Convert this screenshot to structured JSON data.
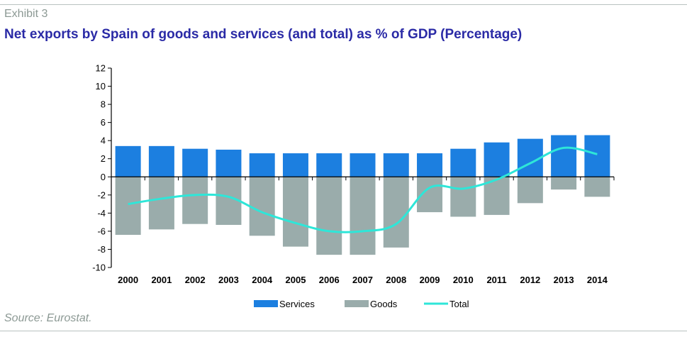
{
  "header": {
    "exhibit": "Exhibit 3",
    "title": "Net exports by Spain of goods and services (and total) as % of GDP (Percentage)"
  },
  "footer": {
    "source": "Source: Eurostat."
  },
  "colors": {
    "services": "#1c7fe0",
    "goods": "#9aacab",
    "total": "#2ee6d8",
    "title": "#2a2aa6"
  },
  "chart_data": {
    "type": "bar",
    "categories": [
      "2000",
      "2001",
      "2002",
      "2003",
      "2004",
      "2005",
      "2006",
      "2007",
      "2008",
      "2009",
      "2010",
      "2011",
      "2012",
      "2013",
      "2014"
    ],
    "series": [
      {
        "name": "Services",
        "type": "bar",
        "values": [
          3.4,
          3.4,
          3.1,
          3.0,
          2.6,
          2.6,
          2.6,
          2.6,
          2.6,
          2.6,
          3.1,
          3.8,
          4.2,
          4.6,
          4.6
        ]
      },
      {
        "name": "Goods",
        "type": "bar",
        "values": [
          -6.4,
          -5.8,
          -5.2,
          -5.3,
          -6.5,
          -7.7,
          -8.6,
          -8.6,
          -7.8,
          -3.9,
          -4.4,
          -4.2,
          -2.9,
          -1.4,
          -2.2
        ]
      },
      {
        "name": "Total",
        "type": "line",
        "values": [
          -3.0,
          -2.4,
          -2.0,
          -2.2,
          -3.9,
          -5.1,
          -6.0,
          -6.0,
          -5.2,
          -1.2,
          -1.3,
          -0.3,
          1.5,
          3.2,
          2.5
        ]
      }
    ],
    "ylim": [
      -10,
      12
    ],
    "yticks": [
      12,
      10,
      8,
      6,
      4,
      2,
      0,
      -2,
      -4,
      -6,
      -8,
      -10
    ],
    "legend_position": "bottom",
    "grid": false
  }
}
